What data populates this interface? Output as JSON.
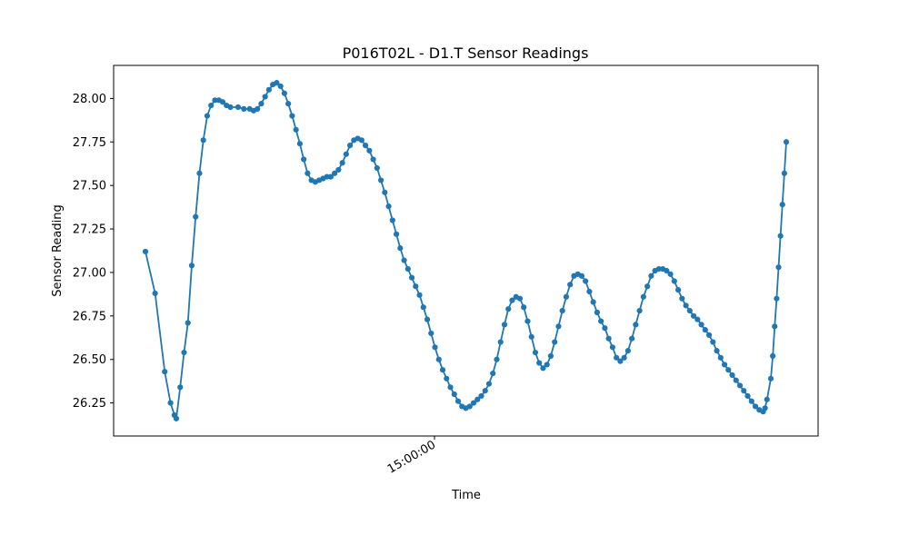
{
  "chart_data": {
    "type": "line",
    "title": "P016T02L - D1.T Sensor Readings",
    "xlabel": "Time",
    "ylabel": "Sensor Reading",
    "x_tick_labels": [
      "15:00:00"
    ],
    "y_tick_labels": [
      "26.25",
      "26.50",
      "26.75",
      "27.00",
      "27.25",
      "27.50",
      "27.75",
      "28.00"
    ],
    "y_ticks": [
      26.25,
      26.5,
      26.75,
      27.0,
      27.25,
      27.5,
      27.75,
      28.0
    ],
    "ylim": [
      26.06,
      28.19
    ],
    "grid": false,
    "legend": "none",
    "marker": "circle",
    "color": "#1f77b4",
    "anchors": [
      [
        0,
        27.12
      ],
      [
        5,
        26.88
      ],
      [
        10,
        26.43
      ],
      [
        13,
        26.25
      ],
      [
        15,
        26.18
      ],
      [
        16,
        26.16
      ],
      [
        18,
        26.34
      ],
      [
        20,
        26.54
      ],
      [
        22,
        26.71
      ],
      [
        24,
        27.04
      ],
      [
        26,
        27.32
      ],
      [
        28,
        27.57
      ],
      [
        30,
        27.76
      ],
      [
        32,
        27.9
      ],
      [
        34,
        27.96
      ],
      [
        36,
        27.99
      ],
      [
        38,
        27.99
      ],
      [
        40,
        27.98
      ],
      [
        42,
        27.96
      ],
      [
        44,
        27.95
      ],
      [
        48,
        27.95
      ],
      [
        51,
        27.94
      ],
      [
        54,
        27.94
      ],
      [
        56,
        27.93
      ],
      [
        58,
        27.94
      ],
      [
        60,
        27.97
      ],
      [
        62,
        28.01
      ],
      [
        64,
        28.05
      ],
      [
        66,
        28.08
      ],
      [
        68,
        28.09
      ],
      [
        70,
        28.07
      ],
      [
        72,
        28.03
      ],
      [
        74,
        27.97
      ],
      [
        76,
        27.9
      ],
      [
        78,
        27.82
      ],
      [
        80,
        27.74
      ],
      [
        82,
        27.65
      ],
      [
        84,
        27.57
      ],
      [
        86,
        27.53
      ],
      [
        88,
        27.52
      ],
      [
        90,
        27.53
      ],
      [
        92,
        27.54
      ],
      [
        94,
        27.55
      ],
      [
        96,
        27.55
      ],
      [
        98,
        27.57
      ],
      [
        100,
        27.59
      ],
      [
        102,
        27.63
      ],
      [
        104,
        27.68
      ],
      [
        106,
        27.73
      ],
      [
        108,
        27.76
      ],
      [
        110,
        27.77
      ],
      [
        112,
        27.76
      ],
      [
        114,
        27.73
      ],
      [
        116,
        27.7
      ],
      [
        118,
        27.65
      ],
      [
        120,
        27.6
      ],
      [
        122,
        27.53
      ],
      [
        124,
        27.46
      ],
      [
        126,
        27.38
      ],
      [
        128,
        27.3
      ],
      [
        130,
        27.22
      ],
      [
        132,
        27.14
      ],
      [
        134,
        27.07
      ],
      [
        136,
        27.02
      ],
      [
        138,
        26.97
      ],
      [
        140,
        26.92
      ],
      [
        142,
        26.87
      ],
      [
        144,
        26.8
      ],
      [
        146,
        26.73
      ],
      [
        148,
        26.65
      ],
      [
        150,
        26.57
      ],
      [
        152,
        26.5
      ],
      [
        154,
        26.44
      ],
      [
        156,
        26.39
      ],
      [
        158,
        26.34
      ],
      [
        160,
        26.3
      ],
      [
        162,
        26.26
      ],
      [
        164,
        26.23
      ],
      [
        166,
        26.22
      ],
      [
        168,
        26.23
      ],
      [
        170,
        26.25
      ],
      [
        172,
        26.27
      ],
      [
        174,
        26.29
      ],
      [
        176,
        26.32
      ],
      [
        178,
        26.36
      ],
      [
        180,
        26.42
      ],
      [
        182,
        26.5
      ],
      [
        184,
        26.6
      ],
      [
        186,
        26.7
      ],
      [
        188,
        26.79
      ],
      [
        190,
        26.84
      ],
      [
        192,
        26.86
      ],
      [
        194,
        26.85
      ],
      [
        196,
        26.8
      ],
      [
        198,
        26.72
      ],
      [
        200,
        26.63
      ],
      [
        202,
        26.54
      ],
      [
        204,
        26.48
      ],
      [
        206,
        26.45
      ],
      [
        208,
        26.47
      ],
      [
        210,
        26.52
      ],
      [
        212,
        26.6
      ],
      [
        214,
        26.69
      ],
      [
        216,
        26.78
      ],
      [
        218,
        26.86
      ],
      [
        220,
        26.93
      ],
      [
        222,
        26.98
      ],
      [
        224,
        26.99
      ],
      [
        226,
        26.98
      ],
      [
        228,
        26.95
      ],
      [
        230,
        26.89
      ],
      [
        232,
        26.83
      ],
      [
        234,
        26.77
      ],
      [
        236,
        26.72
      ],
      [
        238,
        26.68
      ],
      [
        240,
        26.62
      ],
      [
        242,
        26.57
      ],
      [
        244,
        26.51
      ],
      [
        246,
        26.49
      ],
      [
        248,
        26.51
      ],
      [
        250,
        26.55
      ],
      [
        252,
        26.62
      ],
      [
        254,
        26.7
      ],
      [
        256,
        26.78
      ],
      [
        258,
        26.86
      ],
      [
        260,
        26.92
      ],
      [
        262,
        26.98
      ],
      [
        264,
        27.01
      ],
      [
        266,
        27.02
      ],
      [
        268,
        27.02
      ],
      [
        270,
        27.01
      ],
      [
        272,
        26.99
      ],
      [
        274,
        26.95
      ],
      [
        276,
        26.9
      ],
      [
        278,
        26.85
      ],
      [
        280,
        26.81
      ],
      [
        282,
        26.78
      ],
      [
        284,
        26.75
      ],
      [
        286,
        26.73
      ],
      [
        288,
        26.7
      ],
      [
        290,
        26.67
      ],
      [
        292,
        26.64
      ],
      [
        294,
        26.6
      ],
      [
        296,
        26.55
      ],
      [
        298,
        26.51
      ],
      [
        300,
        26.47
      ],
      [
        302,
        26.44
      ],
      [
        304,
        26.41
      ],
      [
        306,
        26.38
      ],
      [
        308,
        26.35
      ],
      [
        310,
        26.32
      ],
      [
        312,
        26.29
      ],
      [
        314,
        26.26
      ],
      [
        316,
        26.23
      ],
      [
        318,
        26.21
      ],
      [
        320,
        26.2
      ],
      [
        321,
        26.22
      ],
      [
        322,
        26.27
      ],
      [
        324,
        26.39
      ],
      [
        325,
        26.52
      ],
      [
        326,
        26.69
      ],
      [
        327,
        26.85
      ],
      [
        328,
        27.03
      ],
      [
        329,
        27.21
      ],
      [
        330,
        27.39
      ],
      [
        331,
        27.57
      ],
      [
        332,
        27.75
      ]
    ]
  }
}
